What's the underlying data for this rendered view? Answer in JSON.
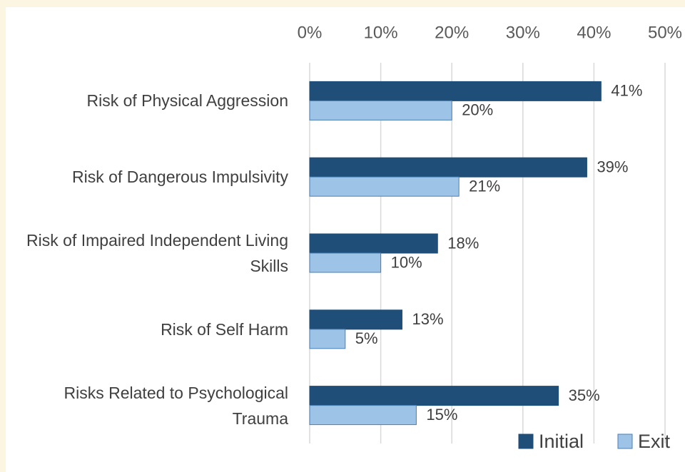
{
  "chart_data": {
    "type": "bar",
    "orientation": "horizontal",
    "categories": [
      "Risk of Physical Aggression",
      "Risk of Dangerous Impulsivity",
      "Risk of Impaired Independent Living Skills",
      "Risk of Self Harm",
      "Risks Related to Psychological Trauma"
    ],
    "series": [
      {
        "name": "Initial",
        "color": "#1f4e79",
        "values": [
          41,
          39,
          18,
          13,
          35
        ],
        "value_labels": [
          "41%",
          "39%",
          "18%",
          "13%",
          "35%"
        ]
      },
      {
        "name": "Exit",
        "color": "#9dc3e6",
        "values": [
          20,
          21,
          10,
          5,
          15
        ],
        "value_labels": [
          "20%",
          "21%",
          "10%",
          "5%",
          "15%"
        ]
      }
    ],
    "xlim": [
      0,
      50
    ],
    "xticks": [
      {
        "value": 0,
        "label": "0%"
      },
      {
        "value": 10,
        "label": "10%"
      },
      {
        "value": 20,
        "label": "20%"
      },
      {
        "value": 30,
        "label": "30%"
      },
      {
        "value": 40,
        "label": "40%"
      },
      {
        "value": 50,
        "label": "50%"
      }
    ],
    "grid": true,
    "legend": "bottom-right"
  }
}
